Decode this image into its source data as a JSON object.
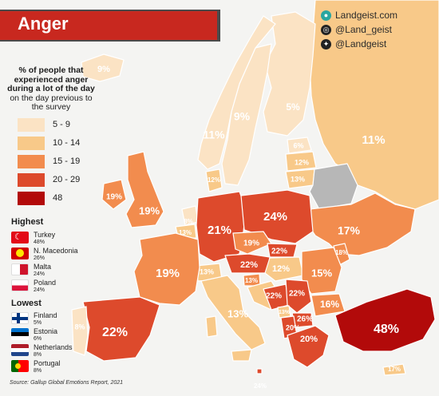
{
  "title": "Anger",
  "brand": {
    "website": "Landgeist.com",
    "instagram": "@Land_geist",
    "twitter": "@Landgeist"
  },
  "legend": {
    "title_bold": "% of people that experienced anger during a lot of the day",
    "title_rest": "on the day previous to the survey",
    "bins": [
      {
        "label": "5 - 9",
        "color": "#fbe3c4"
      },
      {
        "label": "10 - 14",
        "color": "#f8c989"
      },
      {
        "label": "15 - 19",
        "color": "#f28c4e"
      },
      {
        "label": "20 - 29",
        "color": "#dd4a2c"
      },
      {
        "label": "48",
        "color": "#b20a0a"
      }
    ]
  },
  "highest": {
    "heading": "Highest",
    "items": [
      {
        "name": "Turkey",
        "value": "48%",
        "flag": "turkey"
      },
      {
        "name": "N. Macedonia",
        "value": "26%",
        "flag": "macedonia"
      },
      {
        "name": "Malta",
        "value": "24%",
        "flag": "malta"
      },
      {
        "name": "Poland",
        "value": "24%",
        "flag": "poland"
      }
    ]
  },
  "lowest": {
    "heading": "Lowest",
    "items": [
      {
        "name": "Finland",
        "value": "5%",
        "flag": "finland"
      },
      {
        "name": "Estonia",
        "value": "6%",
        "flag": "estonia"
      },
      {
        "name": "Netherlands",
        "value": "8%",
        "flag": "netherlands"
      },
      {
        "name": "Portugal",
        "value": "8%",
        "flag": "portugal"
      }
    ]
  },
  "source": "Source: Gallup Global Emotions Report, 2021",
  "map_labels": [
    {
      "text": "9%",
      "name": "iceland"
    },
    {
      "text": "5%",
      "name": "finland"
    },
    {
      "text": "9%",
      "name": "sweden"
    },
    {
      "text": "11%",
      "name": "norway"
    },
    {
      "text": "11%",
      "name": "russia"
    },
    {
      "text": "6%",
      "name": "estonia"
    },
    {
      "text": "12%",
      "name": "latvia"
    },
    {
      "text": "13%",
      "name": "lithuania"
    },
    {
      "text": "12%",
      "name": "denmark"
    },
    {
      "text": "19%",
      "name": "ireland"
    },
    {
      "text": "19%",
      "name": "united-kingdom"
    },
    {
      "text": "8%",
      "name": "netherlands"
    },
    {
      "text": "13%",
      "name": "belgium"
    },
    {
      "text": "21%",
      "name": "germany"
    },
    {
      "text": "24%",
      "name": "poland"
    },
    {
      "text": "17%",
      "name": "ukraine"
    },
    {
      "text": "19%",
      "name": "czechia"
    },
    {
      "text": "22%",
      "name": "slovakia"
    },
    {
      "text": "18%",
      "name": "moldova"
    },
    {
      "text": "19%",
      "name": "france"
    },
    {
      "text": "13%",
      "name": "switzerland"
    },
    {
      "text": "22%",
      "name": "austria"
    },
    {
      "text": "12%",
      "name": "hungary"
    },
    {
      "text": "15%",
      "name": "romania"
    },
    {
      "text": "13%",
      "name": "slovenia"
    },
    {
      "text": "22%",
      "name": "bosnia"
    },
    {
      "text": "22%",
      "name": "serbia"
    },
    {
      "text": "16%",
      "name": "bulgaria"
    },
    {
      "text": "13%",
      "name": "montenegro"
    },
    {
      "text": "26%",
      "name": "north-macedonia"
    },
    {
      "text": "20%",
      "name": "albania"
    },
    {
      "text": "20%",
      "name": "greece"
    },
    {
      "text": "48%",
      "name": "turkey"
    },
    {
      "text": "13%",
      "name": "italy"
    },
    {
      "text": "22%",
      "name": "spain"
    },
    {
      "text": "8%",
      "name": "portugal"
    },
    {
      "text": "24%",
      "name": "malta"
    },
    {
      "text": "17%",
      "name": "cyprus"
    }
  ]
}
